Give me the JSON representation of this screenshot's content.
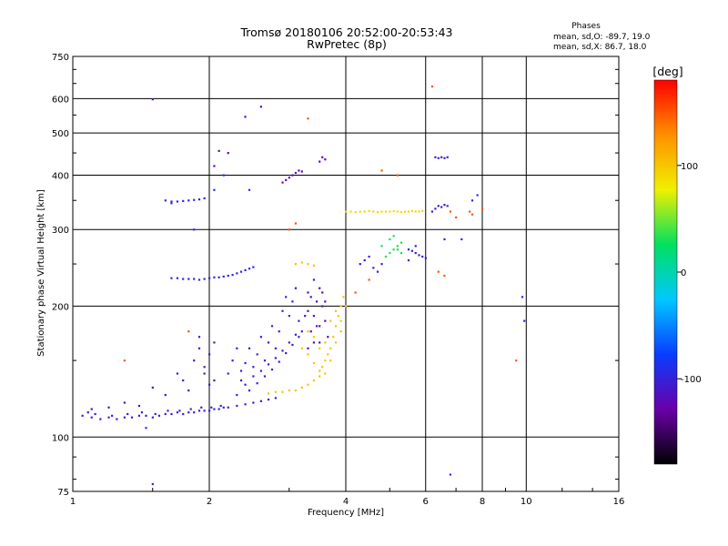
{
  "chart_data": {
    "type": "scatter",
    "title": "Tromsø 20180106 20:52:00-20:53:43",
    "subtitle": "RwPretec (8p)",
    "xlabel": "Frequency [MHz]",
    "ylabel": "Stationary phase Virtual Height [km]",
    "x_scale": "log",
    "y_scale": "log",
    "xlim": [
      1,
      16
    ],
    "ylim": [
      75,
      750
    ],
    "x_ticks": [
      1,
      2,
      4,
      6,
      8,
      10,
      16
    ],
    "y_ticks": [
      75,
      100,
      200,
      300,
      400,
      500,
      600,
      750
    ],
    "grid": true,
    "stats": {
      "heading": "Phases",
      "line_o": "mean, sd,O: -89.7, 19.0",
      "line_x": "mean, sd,X:  86.7, 18.0"
    },
    "colorbar": {
      "label": "[deg]",
      "range": [
        -180,
        180
      ],
      "ticks": [
        -100,
        0,
        100
      ],
      "colormap": [
        "#000000",
        "#6a00a8",
        "#0a3cff",
        "#00c8ff",
        "#00e060",
        "#f0f000",
        "#ff9000",
        "#ff0000"
      ]
    },
    "series": [
      {
        "color_value": -100,
        "points": [
          [
            1.05,
            112
          ],
          [
            1.1,
            111
          ],
          [
            1.15,
            110
          ],
          [
            1.2,
            111
          ],
          [
            1.25,
            110
          ],
          [
            1.3,
            111
          ],
          [
            1.35,
            111
          ],
          [
            1.4,
            112
          ],
          [
            1.45,
            112
          ],
          [
            1.5,
            111
          ],
          [
            1.55,
            112
          ],
          [
            1.6,
            113
          ],
          [
            1.65,
            113
          ],
          [
            1.7,
            114
          ],
          [
            1.75,
            113
          ],
          [
            1.8,
            114
          ],
          [
            1.85,
            114
          ],
          [
            1.9,
            115
          ],
          [
            1.95,
            115
          ],
          [
            2.0,
            115
          ],
          [
            2.05,
            116
          ],
          [
            2.1,
            116
          ],
          [
            2.15,
            117
          ],
          [
            2.2,
            117
          ],
          [
            2.3,
            118
          ],
          [
            2.4,
            119
          ],
          [
            2.5,
            120
          ],
          [
            2.6,
            121
          ],
          [
            2.7,
            122
          ],
          [
            2.8,
            123
          ],
          [
            1.08,
            114
          ],
          [
            1.12,
            113
          ],
          [
            1.22,
            112
          ],
          [
            1.32,
            113
          ],
          [
            1.42,
            114
          ],
          [
            1.52,
            113
          ],
          [
            1.62,
            115
          ],
          [
            1.72,
            115
          ],
          [
            1.82,
            116
          ],
          [
            1.92,
            117
          ],
          [
            2.02,
            117
          ],
          [
            2.12,
            118
          ]
        ]
      },
      {
        "color_value": -95,
        "points": [
          [
            1.65,
            232
          ],
          [
            1.7,
            232
          ],
          [
            1.75,
            231
          ],
          [
            1.8,
            231
          ],
          [
            1.85,
            231
          ],
          [
            1.9,
            230
          ],
          [
            1.95,
            231
          ],
          [
            2.0,
            232
          ],
          [
            2.05,
            233
          ],
          [
            2.1,
            233
          ],
          [
            2.15,
            234
          ],
          [
            2.2,
            235
          ],
          [
            2.25,
            236
          ],
          [
            2.3,
            238
          ],
          [
            2.35,
            240
          ],
          [
            2.4,
            242
          ],
          [
            2.45,
            244
          ],
          [
            2.5,
            246
          ],
          [
            1.6,
            350
          ],
          [
            1.65,
            348
          ],
          [
            1.7,
            348
          ],
          [
            1.75,
            349
          ],
          [
            1.8,
            350
          ],
          [
            1.85,
            351
          ],
          [
            1.9,
            352
          ],
          [
            1.95,
            354
          ]
        ]
      },
      {
        "color_value": -100,
        "points": [
          [
            2.3,
            125
          ],
          [
            2.35,
            135
          ],
          [
            2.4,
            148
          ],
          [
            2.45,
            160
          ],
          [
            2.5,
            145
          ],
          [
            2.55,
            155
          ],
          [
            2.6,
            170
          ],
          [
            2.65,
            150
          ],
          [
            2.7,
            165
          ],
          [
            2.75,
            180
          ],
          [
            2.8,
            160
          ],
          [
            2.85,
            175
          ],
          [
            2.9,
            195
          ],
          [
            2.95,
            210
          ],
          [
            3.0,
            190
          ],
          [
            3.05,
            205
          ],
          [
            3.1,
            220
          ],
          [
            3.15,
            185
          ],
          [
            2.4,
            132
          ],
          [
            2.5,
            138
          ],
          [
            2.6,
            142
          ],
          [
            2.7,
            147
          ],
          [
            2.8,
            152
          ],
          [
            2.9,
            158
          ],
          [
            3.0,
            165
          ],
          [
            3.1,
            172
          ],
          [
            2.2,
            140
          ],
          [
            2.25,
            150
          ],
          [
            2.3,
            160
          ],
          [
            2.35,
            142
          ],
          [
            2.45,
            128
          ],
          [
            2.55,
            133
          ],
          [
            2.65,
            138
          ],
          [
            2.75,
            143
          ],
          [
            2.85,
            149
          ],
          [
            2.95,
            156
          ],
          [
            3.05,
            163
          ],
          [
            3.15,
            170
          ]
        ]
      },
      {
        "color_value": -110,
        "points": [
          [
            1.85,
            150
          ],
          [
            1.9,
            160
          ],
          [
            1.95,
            145
          ],
          [
            2.0,
            155
          ],
          [
            2.05,
            165
          ],
          [
            1.9,
            170
          ],
          [
            1.95,
            140
          ],
          [
            2.0,
            132
          ],
          [
            2.05,
            135
          ],
          [
            1.8,
            128
          ],
          [
            1.75,
            135
          ],
          [
            1.7,
            140
          ],
          [
            1.6,
            125
          ],
          [
            1.5,
            130
          ],
          [
            1.4,
            118
          ],
          [
            1.3,
            120
          ],
          [
            1.2,
            117
          ],
          [
            1.1,
            116
          ]
        ]
      },
      {
        "color_value": -115,
        "points": [
          [
            3.3,
            160
          ],
          [
            3.35,
            175
          ],
          [
            3.4,
            190
          ],
          [
            3.45,
            205
          ],
          [
            3.5,
            220
          ],
          [
            3.55,
            200
          ],
          [
            3.6,
            185
          ],
          [
            3.65,
            170
          ],
          [
            3.3,
            195
          ],
          [
            3.35,
            210
          ],
          [
            3.4,
            230
          ],
          [
            3.45,
            180
          ],
          [
            3.5,
            165
          ],
          [
            3.55,
            215
          ],
          [
            3.6,
            205
          ],
          [
            3.2,
            175
          ],
          [
            3.25,
            190
          ],
          [
            3.3,
            215
          ],
          [
            3.4,
            165
          ],
          [
            3.5,
            180
          ]
        ]
      },
      {
        "color_value": 100,
        "points": [
          [
            2.7,
            126
          ],
          [
            2.8,
            127
          ],
          [
            2.9,
            127
          ],
          [
            3.0,
            128
          ],
          [
            3.1,
            128
          ],
          [
            3.2,
            130
          ],
          [
            3.3,
            132
          ],
          [
            3.4,
            135
          ],
          [
            3.5,
            138
          ],
          [
            3.55,
            145
          ],
          [
            3.6,
            150
          ],
          [
            3.65,
            155
          ],
          [
            3.7,
            160
          ],
          [
            3.75,
            170
          ],
          [
            3.8,
            180
          ],
          [
            3.85,
            190
          ],
          [
            3.9,
            200
          ],
          [
            3.95,
            210
          ],
          [
            4.0,
            200
          ],
          [
            3.9,
            175
          ],
          [
            3.8,
            165
          ],
          [
            3.7,
            150
          ],
          [
            3.6,
            140
          ],
          [
            3.5,
            142
          ],
          [
            3.4,
            148
          ],
          [
            3.3,
            155
          ],
          [
            3.2,
            160
          ],
          [
            3.3,
            175
          ],
          [
            3.4,
            170
          ],
          [
            3.5,
            160
          ],
          [
            3.6,
            165
          ],
          [
            3.7,
            185
          ],
          [
            3.8,
            195
          ],
          [
            3.9,
            185
          ],
          [
            3.1,
            250
          ],
          [
            3.2,
            252
          ],
          [
            3.3,
            250
          ],
          [
            3.4,
            248
          ]
        ]
      },
      {
        "color_value": 90,
        "points": [
          [
            4.0,
            330
          ],
          [
            4.1,
            330
          ],
          [
            4.2,
            329
          ],
          [
            4.3,
            330
          ],
          [
            4.4,
            330
          ],
          [
            4.5,
            331
          ],
          [
            4.6,
            330
          ],
          [
            4.7,
            329
          ],
          [
            4.8,
            330
          ],
          [
            4.9,
            330
          ],
          [
            5.0,
            330
          ],
          [
            5.1,
            331
          ],
          [
            5.2,
            330
          ],
          [
            5.3,
            329
          ],
          [
            5.4,
            330
          ],
          [
            5.5,
            330
          ],
          [
            5.6,
            331
          ],
          [
            5.7,
            330
          ],
          [
            5.8,
            330
          ],
          [
            5.9,
            331
          ]
        ]
      },
      {
        "color_value": 30,
        "points": [
          [
            4.9,
            260
          ],
          [
            5.0,
            265
          ],
          [
            5.1,
            270
          ],
          [
            5.2,
            275
          ],
          [
            5.3,
            280
          ],
          [
            5.0,
            285
          ],
          [
            5.1,
            290
          ],
          [
            5.2,
            270
          ],
          [
            5.3,
            265
          ],
          [
            4.8,
            275
          ]
        ]
      },
      {
        "color_value": -105,
        "points": [
          [
            4.3,
            250
          ],
          [
            4.4,
            255
          ],
          [
            4.5,
            260
          ],
          [
            4.6,
            245
          ],
          [
            4.7,
            240
          ],
          [
            4.8,
            250
          ],
          [
            5.5,
            270
          ],
          [
            5.6,
            268
          ],
          [
            5.7,
            265
          ],
          [
            5.8,
            262
          ],
          [
            5.9,
            260
          ],
          [
            6.0,
            258
          ],
          [
            5.5,
            255
          ],
          [
            5.7,
            275
          ],
          [
            6.2,
            330
          ],
          [
            6.3,
            335
          ],
          [
            6.4,
            340
          ],
          [
            6.5,
            338
          ],
          [
            6.6,
            342
          ],
          [
            6.7,
            340
          ],
          [
            6.3,
            440
          ],
          [
            6.4,
            438
          ],
          [
            6.5,
            440
          ],
          [
            6.6,
            438
          ],
          [
            6.7,
            440
          ]
        ]
      },
      {
        "color_value": -120,
        "points": [
          [
            2.95,
            390
          ],
          [
            3.0,
            395
          ],
          [
            3.05,
            400
          ],
          [
            3.1,
            405
          ],
          [
            3.15,
            410
          ],
          [
            3.2,
            408
          ],
          [
            2.9,
            385
          ],
          [
            3.5,
            430
          ],
          [
            3.55,
            440
          ],
          [
            3.6,
            435
          ],
          [
            2.4,
            545
          ],
          [
            2.6,
            575
          ],
          [
            1.5,
            598
          ],
          [
            2.2,
            450
          ],
          [
            2.1,
            455
          ],
          [
            2.05,
            420
          ]
        ]
      },
      {
        "color_value": 150,
        "points": [
          [
            6.2,
            640
          ],
          [
            3.3,
            540
          ],
          [
            5.2,
            400
          ],
          [
            4.8,
            410
          ],
          [
            6.8,
            330
          ],
          [
            7.0,
            320
          ],
          [
            7.5,
            330
          ],
          [
            7.6,
            325
          ],
          [
            8.0,
            335
          ],
          [
            6.4,
            240
          ],
          [
            6.6,
            235
          ],
          [
            4.5,
            230
          ],
          [
            4.2,
            215
          ],
          [
            1.3,
            150
          ],
          [
            1.8,
            175
          ],
          [
            9.5,
            150
          ],
          [
            3.0,
            300
          ],
          [
            3.1,
            310
          ]
        ]
      },
      {
        "color_value": -90,
        "points": [
          [
            1.5,
            78
          ],
          [
            1.45,
            105
          ],
          [
            1.65,
            345
          ],
          [
            1.85,
            300
          ],
          [
            2.05,
            370
          ],
          [
            2.15,
            400
          ],
          [
            2.45,
            370
          ],
          [
            6.8,
            82
          ],
          [
            9.8,
            210
          ],
          [
            9.9,
            185
          ],
          [
            7.2,
            285
          ],
          [
            6.6,
            285
          ],
          [
            7.6,
            350
          ],
          [
            7.8,
            360
          ]
        ]
      }
    ]
  }
}
